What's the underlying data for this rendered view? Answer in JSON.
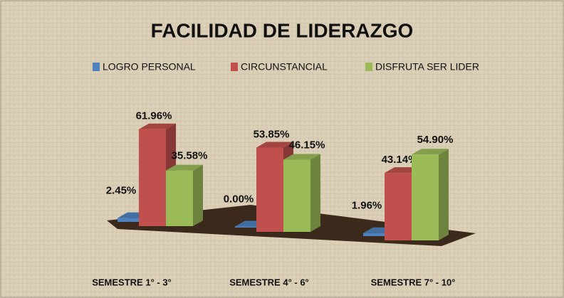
{
  "chart_data": {
    "type": "bar3d",
    "title": "FACILIDAD DE LIDERAZGO",
    "categories": [
      "SEMESTRE 1° - 3°",
      "SEMESTRE 4° - 6°",
      "SEMESTRE 7° - 10°"
    ],
    "series": [
      {
        "name": "LOGRO PERSONAL",
        "color": "#4f81bd",
        "values": [
          2.45,
          0.0,
          1.96
        ],
        "value_labels": [
          "2.45%",
          "0.00%",
          "1.96%"
        ]
      },
      {
        "name": "CIRCUNSTANCIAL",
        "color": "#c0504d",
        "values": [
          61.96,
          53.85,
          43.14
        ],
        "value_labels": [
          "61.96%",
          "53.85%",
          "43.14%"
        ]
      },
      {
        "name": "DISFRUTA SER LIDER",
        "color": "#9bbb59",
        "values": [
          35.58,
          46.15,
          54.9
        ],
        "value_labels": [
          "35.58%",
          "46.15%",
          "54.90%"
        ]
      }
    ],
    "legend": "top"
  }
}
